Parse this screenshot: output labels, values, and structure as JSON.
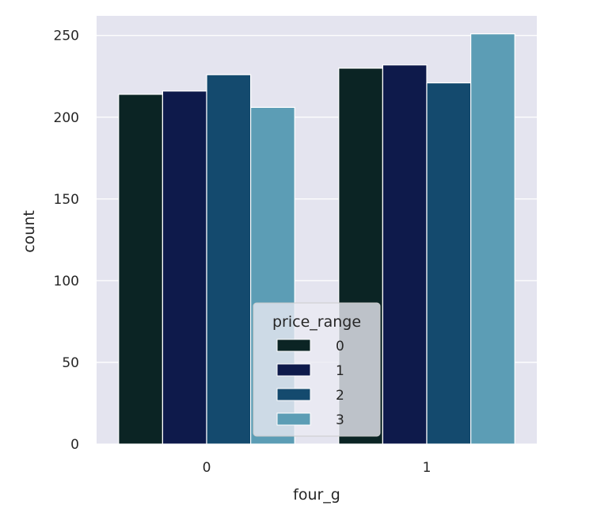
{
  "chart_data": {
    "type": "bar",
    "xlabel": "four_g",
    "ylabel": "count",
    "categories": [
      "0",
      "1"
    ],
    "ylim": [
      0,
      262
    ],
    "yticks": [
      0,
      50,
      100,
      150,
      200,
      250
    ],
    "grid": true,
    "legend": {
      "title": "price_range",
      "placement": "lower-center"
    },
    "series": [
      {
        "name": "0",
        "values": [
          214,
          230
        ],
        "color": "#0b2424"
      },
      {
        "name": "1",
        "values": [
          216,
          232
        ],
        "color": "#0e1a4b"
      },
      {
        "name": "2",
        "values": [
          226,
          221
        ],
        "color": "#144a6e"
      },
      {
        "name": "3",
        "values": [
          206,
          251
        ],
        "color": "#5c9db5"
      }
    ],
    "colors": {
      "plot_background": "#e4e4ef",
      "grid": "#ffffff",
      "page_background": "#ffffff"
    }
  }
}
